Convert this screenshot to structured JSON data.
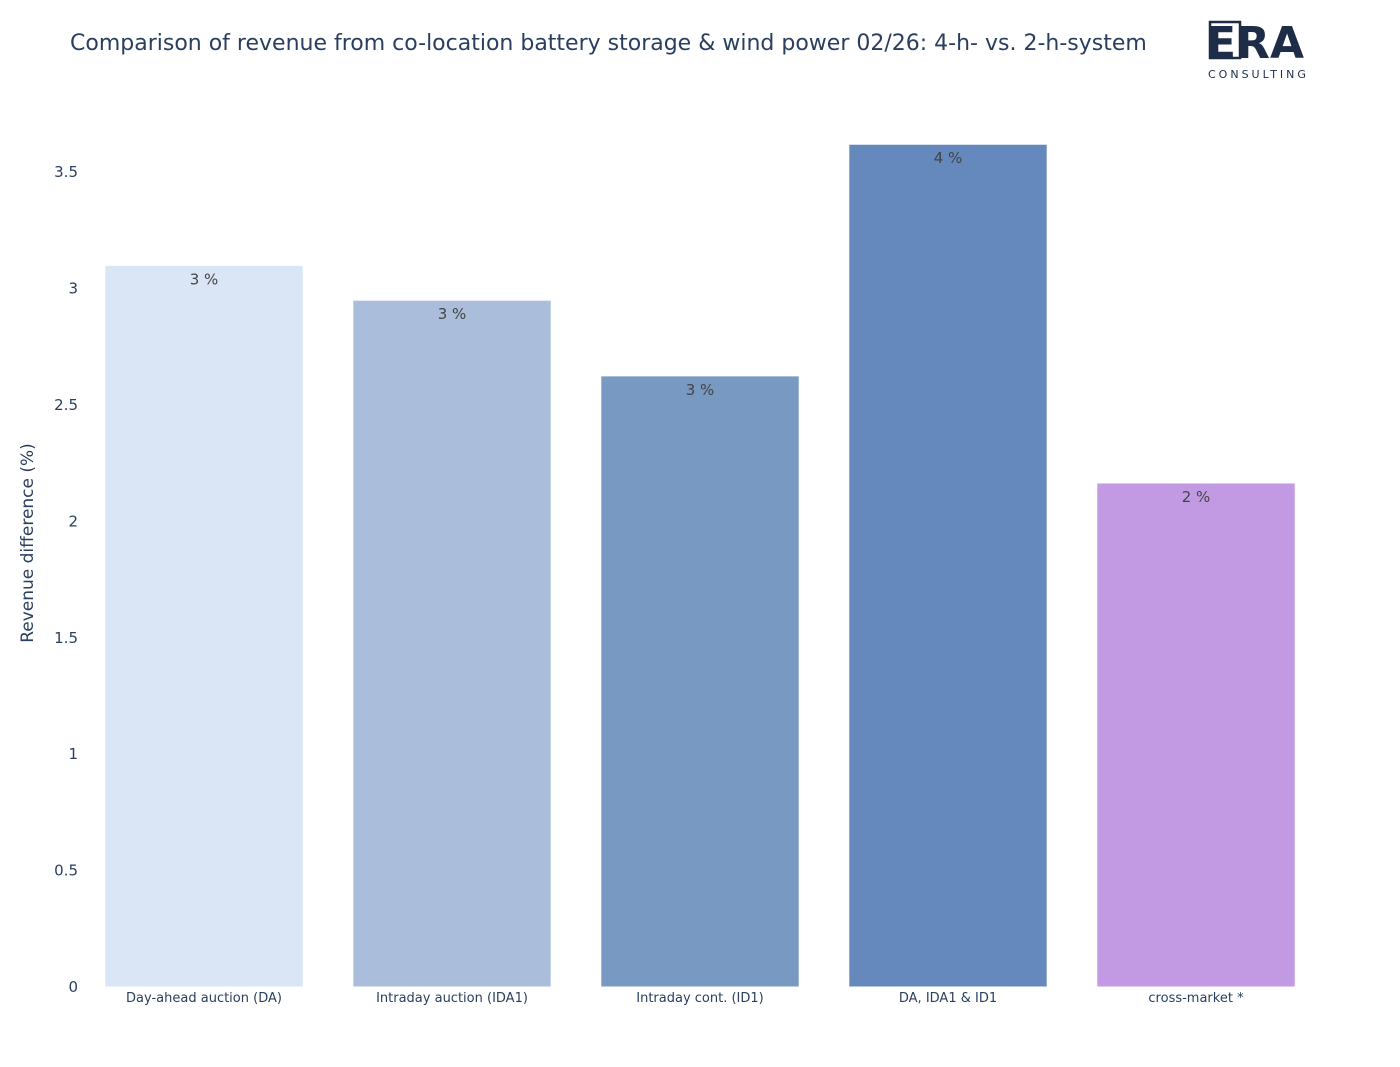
{
  "logo": {
    "name": "ERA",
    "tagline": "CONSULTING"
  },
  "chart_data": {
    "type": "bar",
    "title": "Comparison of revenue from co-location battery storage & wind power 02/26: 4-h- vs. 2-h-system",
    "xlabel": "",
    "ylabel": "Revenue difference (%)",
    "categories": [
      "Day-ahead auction (DA)",
      "Intraday auction (IDA1)",
      "Intraday cont. (ID1)",
      "DA, IDA1 & ID1",
      "cross-market *"
    ],
    "values": [
      3.1,
      2.95,
      2.625,
      3.62,
      2.165
    ],
    "data_labels": [
      "3 %",
      "3 %",
      "3 %",
      "4 %",
      "2 %"
    ],
    "colors": [
      "#dae6f6",
      "#aabedb",
      "#7899c1",
      "#6588bd",
      "#c29ae3"
    ],
    "yticks": [
      0,
      0.5,
      1,
      1.5,
      2,
      2.5,
      3,
      3.5
    ],
    "ytick_labels": [
      "0",
      "0.5",
      "1",
      "1.5",
      "2",
      "2.5",
      "3",
      "3.5"
    ],
    "ylim": [
      0,
      3.81
    ],
    "grid": false,
    "legend": "none"
  }
}
